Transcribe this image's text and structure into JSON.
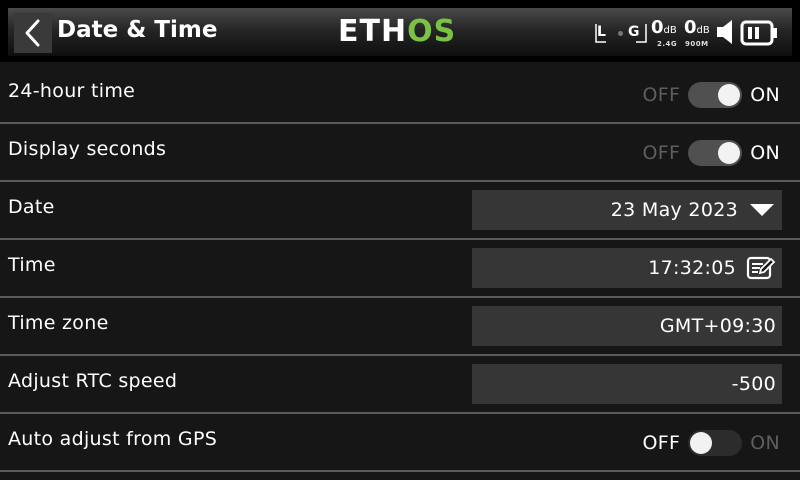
{
  "header": {
    "title": "Date & Time",
    "brand_first": "ETH",
    "brand_second": "OS",
    "status": {
      "rx_left": "L",
      "rx_right": "G",
      "signal_24": "0",
      "signal_900": "0",
      "db_unit": "dB",
      "band_24": "2.4G",
      "band_900": "900M"
    }
  },
  "rows": {
    "hour24": {
      "label": "24-hour time",
      "off": "OFF",
      "on": "ON",
      "state": "on"
    },
    "seconds": {
      "label": "Display seconds",
      "off": "OFF",
      "on": "ON",
      "state": "on"
    },
    "date": {
      "label": "Date",
      "value": "23 May 2023"
    },
    "time": {
      "label": "Time",
      "value": "17:32:05"
    },
    "timezone": {
      "label": "Time zone",
      "value": "GMT+09:30"
    },
    "rtc": {
      "label": "Adjust RTC speed",
      "value": "-500"
    },
    "gps": {
      "label": "Auto adjust from GPS",
      "off": "OFF",
      "on": "ON",
      "state": "off"
    }
  },
  "colors": {
    "brand_accent": "#7cc242",
    "background": "#161616",
    "field_bg": "#363636"
  }
}
